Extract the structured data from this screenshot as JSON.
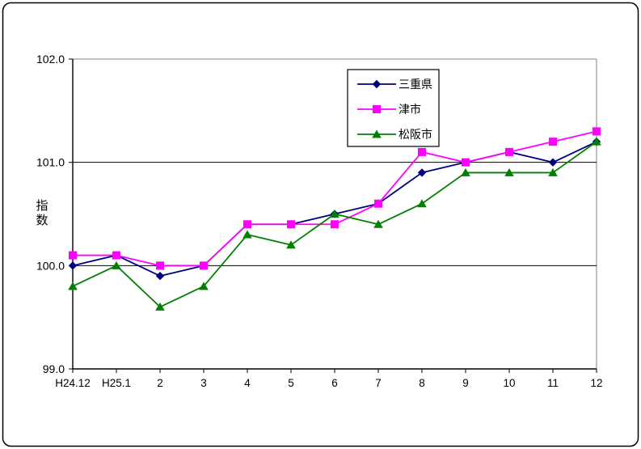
{
  "figure": {
    "background": "#ffffff",
    "outer_border_color": "#000000",
    "plot": {
      "grid_color": "#000000",
      "frame_color": "#808080",
      "axis_color": "#000000",
      "legend_border_color": "#000000",
      "legend_background": "#ffffff"
    }
  },
  "chart_data": {
    "type": "line",
    "title": "",
    "xlabel": "",
    "ylabel": "指数",
    "categories": [
      "H24.12",
      "H25.1",
      "2",
      "3",
      "4",
      "5",
      "6",
      "7",
      "8",
      "9",
      "10",
      "11",
      "12"
    ],
    "series": [
      {
        "id": "mie-prefecture",
        "name": "三重県",
        "color": "#000080",
        "marker": "diamond",
        "values": [
          100.0,
          100.1,
          99.9,
          100.0,
          100.4,
          100.4,
          100.5,
          100.6,
          100.9,
          101.0,
          101.1,
          101.0,
          101.2
        ]
      },
      {
        "id": "tsu-city",
        "name": "津市",
        "color": "#FF00FF",
        "marker": "square",
        "values": [
          100.1,
          100.1,
          100.0,
          100.0,
          100.4,
          100.4,
          100.4,
          100.6,
          101.1,
          101.0,
          101.1,
          101.2,
          101.3
        ]
      },
      {
        "id": "matsusaka-city",
        "name": "松阪市",
        "color": "#008000",
        "marker": "triangle",
        "values": [
          99.8,
          100.0,
          99.6,
          99.8,
          100.3,
          100.2,
          100.5,
          100.4,
          100.6,
          100.9,
          100.9,
          100.9,
          101.2
        ]
      }
    ],
    "ylim": [
      99.0,
      102.0
    ],
    "yticks": [
      99.0,
      100.0,
      101.0,
      102.0
    ],
    "ytick_labels": [
      "99.0",
      "100.0",
      "101.0",
      "102.0"
    ],
    "grid": "horizontal-major",
    "legend_position": "inside-top-center"
  }
}
